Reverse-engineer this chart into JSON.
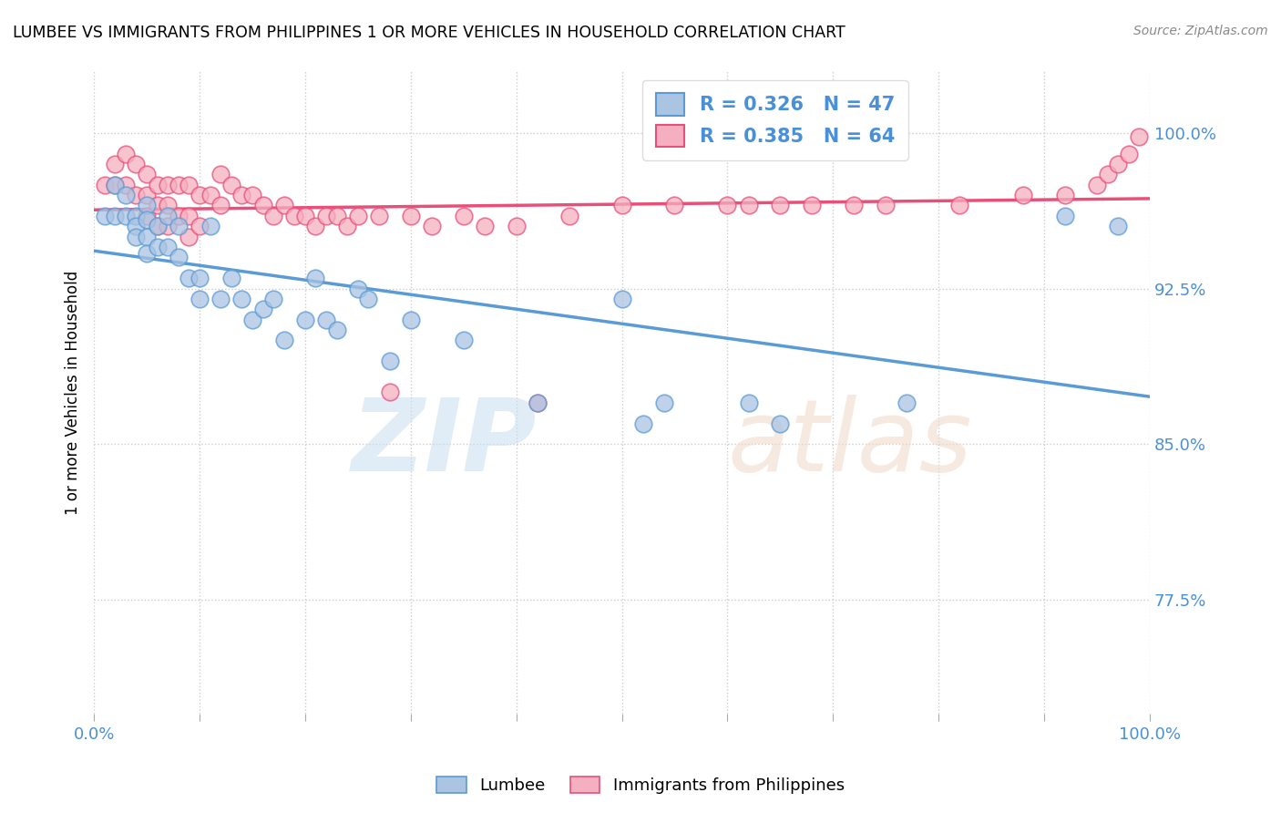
{
  "title": "LUMBEE VS IMMIGRANTS FROM PHILIPPINES 1 OR MORE VEHICLES IN HOUSEHOLD CORRELATION CHART",
  "source": "Source: ZipAtlas.com",
  "ylabel": "1 or more Vehicles in Household",
  "y_ticks": [
    0.775,
    0.85,
    0.925,
    1.0
  ],
  "y_tick_labels": [
    "77.5%",
    "85.0%",
    "92.5%",
    "100.0%"
  ],
  "x_range": [
    0.0,
    1.0
  ],
  "y_range": [
    0.72,
    1.03
  ],
  "lumbee_R": 0.326,
  "lumbee_N": 47,
  "philippines_R": 0.385,
  "philippines_N": 64,
  "lumbee_color": "#aac4e2",
  "lumbee_line_color": "#5b9bd5",
  "philippines_color": "#f4afc0",
  "philippines_line_color": "#e8507a",
  "lumbee_x": [
    0.01,
    0.02,
    0.02,
    0.03,
    0.03,
    0.04,
    0.04,
    0.04,
    0.05,
    0.05,
    0.05,
    0.05,
    0.06,
    0.06,
    0.07,
    0.07,
    0.08,
    0.08,
    0.09,
    0.1,
    0.1,
    0.11,
    0.12,
    0.13,
    0.14,
    0.15,
    0.16,
    0.17,
    0.18,
    0.2,
    0.21,
    0.22,
    0.23,
    0.25,
    0.26,
    0.28,
    0.3,
    0.35,
    0.42,
    0.5,
    0.52,
    0.54,
    0.62,
    0.65,
    0.77,
    0.92,
    0.97
  ],
  "lumbee_y": [
    0.96,
    0.975,
    0.96,
    0.97,
    0.96,
    0.96,
    0.955,
    0.95,
    0.965,
    0.958,
    0.95,
    0.942,
    0.955,
    0.945,
    0.96,
    0.945,
    0.955,
    0.94,
    0.93,
    0.93,
    0.92,
    0.955,
    0.92,
    0.93,
    0.92,
    0.91,
    0.915,
    0.92,
    0.9,
    0.91,
    0.93,
    0.91,
    0.905,
    0.925,
    0.92,
    0.89,
    0.91,
    0.9,
    0.87,
    0.92,
    0.86,
    0.87,
    0.87,
    0.86,
    0.87,
    0.96,
    0.955
  ],
  "philippines_x": [
    0.01,
    0.02,
    0.02,
    0.03,
    0.03,
    0.04,
    0.04,
    0.05,
    0.05,
    0.05,
    0.06,
    0.06,
    0.06,
    0.07,
    0.07,
    0.07,
    0.08,
    0.08,
    0.09,
    0.09,
    0.09,
    0.1,
    0.1,
    0.11,
    0.12,
    0.12,
    0.13,
    0.14,
    0.15,
    0.16,
    0.17,
    0.18,
    0.19,
    0.2,
    0.21,
    0.22,
    0.23,
    0.24,
    0.25,
    0.27,
    0.28,
    0.3,
    0.32,
    0.35,
    0.37,
    0.4,
    0.42,
    0.45,
    0.5,
    0.55,
    0.6,
    0.62,
    0.65,
    0.68,
    0.72,
    0.75,
    0.82,
    0.88,
    0.92,
    0.95,
    0.96,
    0.97,
    0.98,
    0.99
  ],
  "philippines_y": [
    0.975,
    0.985,
    0.975,
    0.99,
    0.975,
    0.985,
    0.97,
    0.98,
    0.97,
    0.96,
    0.975,
    0.965,
    0.955,
    0.975,
    0.965,
    0.955,
    0.975,
    0.96,
    0.975,
    0.96,
    0.95,
    0.97,
    0.955,
    0.97,
    0.98,
    0.965,
    0.975,
    0.97,
    0.97,
    0.965,
    0.96,
    0.965,
    0.96,
    0.96,
    0.955,
    0.96,
    0.96,
    0.955,
    0.96,
    0.96,
    0.875,
    0.96,
    0.955,
    0.96,
    0.955,
    0.955,
    0.87,
    0.96,
    0.965,
    0.965,
    0.965,
    0.965,
    0.965,
    0.965,
    0.965,
    0.965,
    0.965,
    0.97,
    0.97,
    0.975,
    0.98,
    0.985,
    0.99,
    0.998
  ]
}
